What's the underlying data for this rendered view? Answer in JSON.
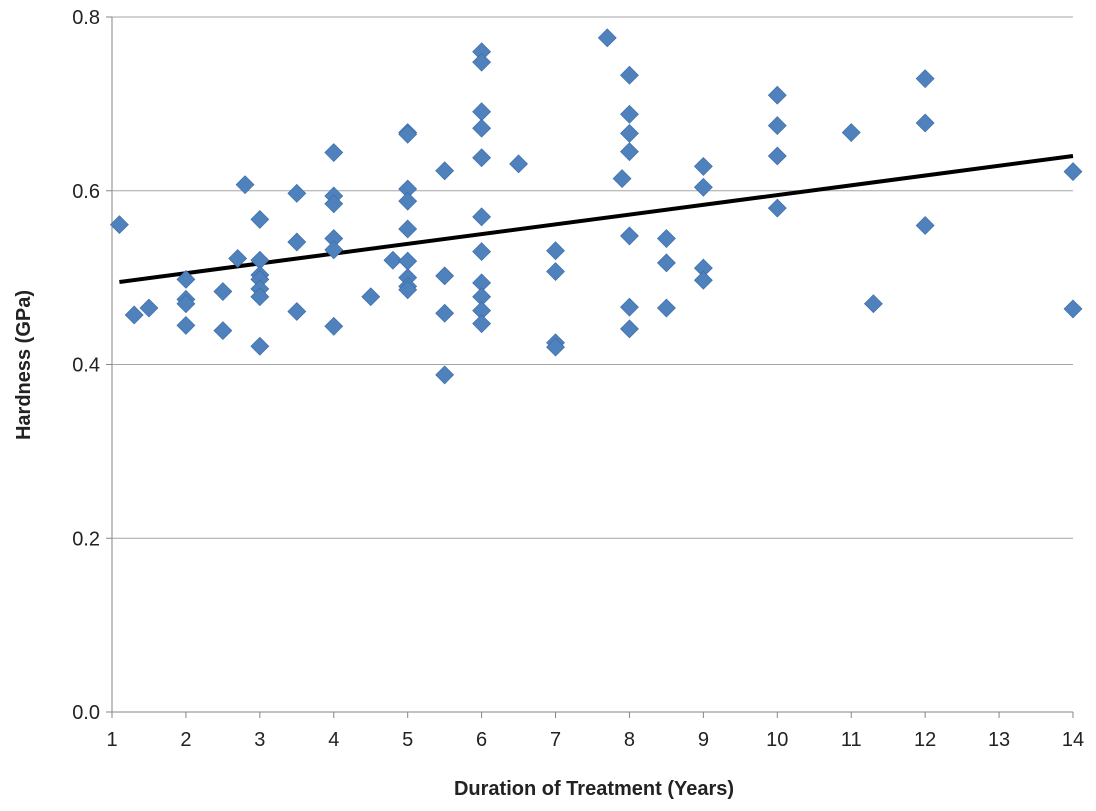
{
  "chart_data": {
    "type": "scatter",
    "xlabel": "Duration of Treatment (Years)",
    "ylabel": "Hardness (GPa)",
    "xlim": [
      1,
      14
    ],
    "ylim": [
      0.0,
      0.8
    ],
    "x_ticks": [
      "1",
      "2",
      "3",
      "4",
      "5",
      "6",
      "7",
      "8",
      "9",
      "10",
      "11",
      "12",
      "13",
      "14"
    ],
    "y_ticks": [
      "0.0",
      "0.2",
      "0.4",
      "0.6",
      "0.8"
    ],
    "grid": "horizontal",
    "legend": "none",
    "marker": "diamond",
    "marker_color": "#4f81bd",
    "trendline_color": "#000000",
    "series": [
      {
        "points": [
          [
            1.1,
            0.561
          ],
          [
            1.3,
            0.457
          ],
          [
            1.5,
            0.465
          ],
          [
            2.0,
            0.498
          ],
          [
            2.0,
            0.475
          ],
          [
            2.0,
            0.47
          ],
          [
            2.0,
            0.445
          ],
          [
            2.5,
            0.484
          ],
          [
            2.5,
            0.439
          ],
          [
            2.7,
            0.522
          ],
          [
            2.8,
            0.607
          ],
          [
            3.0,
            0.567
          ],
          [
            3.0,
            0.52
          ],
          [
            3.0,
            0.503
          ],
          [
            3.0,
            0.498
          ],
          [
            3.0,
            0.487
          ],
          [
            3.0,
            0.478
          ],
          [
            3.0,
            0.421
          ],
          [
            3.5,
            0.597
          ],
          [
            3.5,
            0.541
          ],
          [
            3.5,
            0.461
          ],
          [
            4.0,
            0.644
          ],
          [
            4.0,
            0.594
          ],
          [
            4.0,
            0.585
          ],
          [
            4.0,
            0.545
          ],
          [
            4.0,
            0.532
          ],
          [
            4.0,
            0.444
          ],
          [
            4.5,
            0.478
          ],
          [
            4.8,
            0.52
          ],
          [
            5.0,
            0.667
          ],
          [
            5.0,
            0.665
          ],
          [
            5.0,
            0.602
          ],
          [
            5.0,
            0.588
          ],
          [
            5.0,
            0.556
          ],
          [
            5.0,
            0.519
          ],
          [
            5.0,
            0.5
          ],
          [
            5.0,
            0.49
          ],
          [
            5.0,
            0.486
          ],
          [
            5.5,
            0.623
          ],
          [
            5.5,
            0.502
          ],
          [
            5.5,
            0.459
          ],
          [
            5.5,
            0.388
          ],
          [
            6.0,
            0.76
          ],
          [
            6.0,
            0.748
          ],
          [
            6.0,
            0.691
          ],
          [
            6.0,
            0.672
          ],
          [
            6.0,
            0.638
          ],
          [
            6.0,
            0.57
          ],
          [
            6.0,
            0.53
          ],
          [
            6.0,
            0.494
          ],
          [
            6.0,
            0.478
          ],
          [
            6.0,
            0.462
          ],
          [
            6.0,
            0.447
          ],
          [
            6.5,
            0.631
          ],
          [
            7.0,
            0.531
          ],
          [
            7.0,
            0.507
          ],
          [
            7.0,
            0.425
          ],
          [
            7.0,
            0.42
          ],
          [
            7.7,
            0.776
          ],
          [
            7.9,
            0.614
          ],
          [
            8.0,
            0.733
          ],
          [
            8.0,
            0.688
          ],
          [
            8.0,
            0.666
          ],
          [
            8.0,
            0.645
          ],
          [
            8.0,
            0.548
          ],
          [
            8.0,
            0.466
          ],
          [
            8.0,
            0.441
          ],
          [
            8.5,
            0.545
          ],
          [
            8.5,
            0.517
          ],
          [
            8.5,
            0.465
          ],
          [
            9.0,
            0.628
          ],
          [
            9.0,
            0.604
          ],
          [
            9.0,
            0.511
          ],
          [
            9.0,
            0.497
          ],
          [
            10.0,
            0.71
          ],
          [
            10.0,
            0.675
          ],
          [
            10.0,
            0.64
          ],
          [
            10.0,
            0.58
          ],
          [
            11.0,
            0.667
          ],
          [
            11.3,
            0.47
          ],
          [
            12.0,
            0.729
          ],
          [
            12.0,
            0.678
          ],
          [
            12.0,
            0.56
          ],
          [
            14.0,
            0.622
          ],
          [
            14.0,
            0.464
          ]
        ]
      }
    ],
    "trendline": {
      "type": "linear",
      "from": [
        1.1,
        0.495
      ],
      "to": [
        14.0,
        0.64
      ]
    }
  }
}
